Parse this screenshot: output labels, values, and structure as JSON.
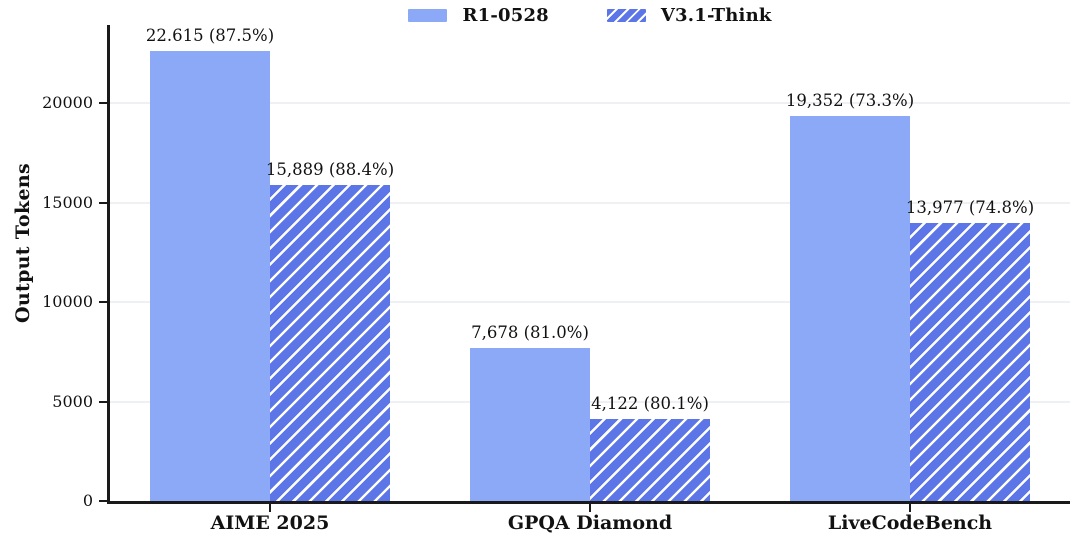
{
  "chart_data": {
    "type": "bar",
    "title": "",
    "categories": [
      "AIME 2025",
      "GPQA Diamond",
      "LiveCodeBench"
    ],
    "series": [
      {
        "name": "R1-0528",
        "pattern": "solid",
        "color": "#8CA9F7",
        "values": [
          22615,
          7678,
          19352
        ],
        "bar_labels": [
          "22.615 (87.5%)",
          "7,678 (81.0%)",
          "19,352 (73.3%)"
        ]
      },
      {
        "name": "V3.1-Think",
        "pattern": "hatch-diagonal",
        "color": "#5C76E8",
        "hatch_color": "#ffffff",
        "values": [
          15889,
          4122,
          13977
        ],
        "bar_labels": [
          "15,889 (88.4%)",
          "4,122 (80.1%)",
          "13,977 (74.8%)"
        ]
      }
    ],
    "ylabel": "Output Tokens",
    "yticks": [
      "0",
      "5000",
      "10000",
      "15000",
      "20000"
    ],
    "ytick_values": [
      0,
      5000,
      10000,
      15000,
      20000
    ],
    "ylim": [
      0,
      23920
    ],
    "grid": "horizontal-faint",
    "legend_position": "top-center",
    "colors": {
      "axis": "#1a1a1a",
      "grid": "#eef0f4",
      "text": "#111111",
      "background": "#ffffff"
    }
  }
}
